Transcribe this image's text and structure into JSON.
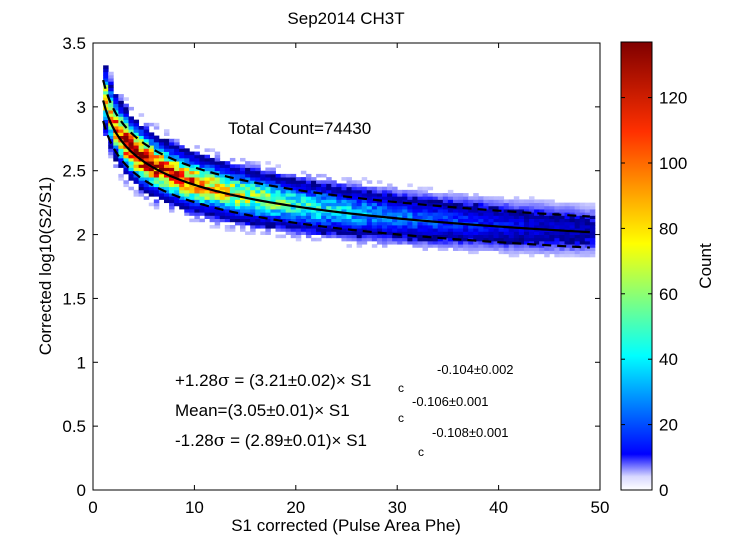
{
  "chart_data": {
    "type": "heatmap",
    "title": "Sep2014 CH3T",
    "xlabel": "S1 corrected (Pulse Area Phe)",
    "ylabel": "Corrected log10(S2/S1)",
    "xlim": [
      0,
      50
    ],
    "ylim": [
      0,
      3.5
    ],
    "x_ticks": [
      0,
      10,
      20,
      30,
      40,
      50
    ],
    "x_tick_labels": [
      "0",
      "10",
      "20",
      "30",
      "40",
      "50"
    ],
    "y_ticks": [
      0,
      0.5,
      1,
      1.5,
      2,
      2.5,
      3,
      3.5
    ],
    "y_tick_labels": [
      "0",
      "0.5",
      "1",
      "1.5",
      "2",
      "2.5",
      "3",
      "3.5"
    ],
    "colorbar": {
      "label": "Count",
      "range": [
        0,
        137
      ],
      "ticks": [
        0,
        20,
        40,
        60,
        80,
        100,
        120
      ],
      "tick_labels": [
        "0",
        "20",
        "40",
        "60",
        "80",
        "100",
        "120"
      ],
      "colormap": "jet"
    },
    "annotations": {
      "total_count": "Total Count=74430",
      "upper_band": {
        "prefix": "+1.28",
        "sigma": "σ",
        "body": " = (3.21±0.02)× S1",
        "subscript": "c",
        "exponent": "-0.104±0.002"
      },
      "mean_band": {
        "prefix": "Mean=(3.05±0.01)× S1",
        "subscript": "c",
        "exponent": "-0.106±0.001"
      },
      "lower_band": {
        "prefix": "-1.28",
        "sigma": "σ",
        "body": " = (2.89±0.01)× S1",
        "subscript": "c",
        "exponent": "-0.108±0.001"
      }
    },
    "fits": {
      "mean": {
        "a": 3.05,
        "b": -0.106,
        "style": "solid"
      },
      "upper": {
        "a": 3.21,
        "b": -0.104,
        "style": "dashed"
      },
      "lower": {
        "a": 2.89,
        "b": -0.108,
        "style": "dashed"
      },
      "x_range": [
        1,
        49
      ]
    },
    "grid": false
  }
}
